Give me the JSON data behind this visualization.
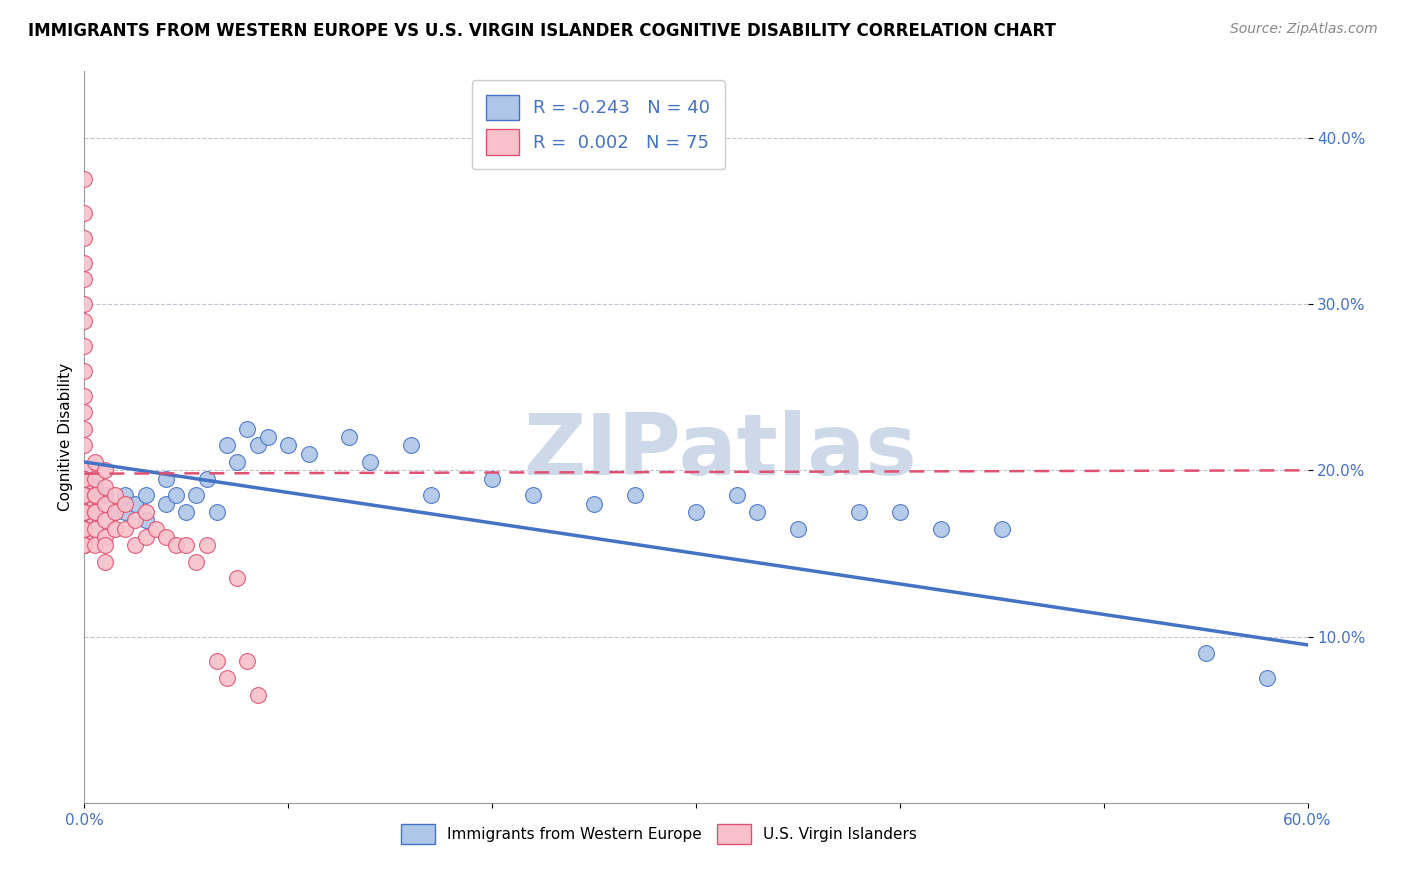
{
  "title": "IMMIGRANTS FROM WESTERN EUROPE VS U.S. VIRGIN ISLANDER COGNITIVE DISABILITY CORRELATION CHART",
  "source": "Source: ZipAtlas.com",
  "ylabel": "Cognitive Disability",
  "xlim": [
    0.0,
    0.6
  ],
  "ylim": [
    0.0,
    0.44
  ],
  "xticks": [
    0.0,
    0.1,
    0.2,
    0.3,
    0.4,
    0.5,
    0.6
  ],
  "xtick_labels": [
    "0.0%",
    "",
    "",
    "",
    "",
    "",
    "60.0%"
  ],
  "yticks": [
    0.1,
    0.2,
    0.3,
    0.4
  ],
  "ytick_labels": [
    "10.0%",
    "20.0%",
    "30.0%",
    "40.0%"
  ],
  "blue_R": -0.243,
  "blue_N": 40,
  "pink_R": 0.002,
  "pink_N": 75,
  "blue_color": "#aec6e8",
  "pink_color": "#f7c0ca",
  "blue_line_color": "#4472c4",
  "pink_line_color": "#e05070",
  "legend_label_blue": "Immigrants from Western Europe",
  "legend_label_pink": "U.S. Virgin Islanders",
  "blue_scatter_x": [
    0.005,
    0.01,
    0.015,
    0.02,
    0.02,
    0.025,
    0.03,
    0.03,
    0.04,
    0.04,
    0.045,
    0.05,
    0.055,
    0.06,
    0.065,
    0.07,
    0.075,
    0.08,
    0.085,
    0.09,
    0.1,
    0.11,
    0.13,
    0.14,
    0.16,
    0.17,
    0.2,
    0.22,
    0.25,
    0.27,
    0.3,
    0.32,
    0.33,
    0.35,
    0.38,
    0.4,
    0.42,
    0.45,
    0.55,
    0.58
  ],
  "blue_scatter_y": [
    0.19,
    0.185,
    0.175,
    0.175,
    0.185,
    0.18,
    0.185,
    0.17,
    0.18,
    0.195,
    0.185,
    0.175,
    0.185,
    0.195,
    0.175,
    0.215,
    0.205,
    0.225,
    0.215,
    0.22,
    0.215,
    0.21,
    0.22,
    0.205,
    0.215,
    0.185,
    0.195,
    0.185,
    0.18,
    0.185,
    0.175,
    0.185,
    0.175,
    0.165,
    0.175,
    0.175,
    0.165,
    0.165,
    0.09,
    0.075
  ],
  "pink_scatter_x": [
    0.0,
    0.0,
    0.0,
    0.0,
    0.0,
    0.0,
    0.0,
    0.0,
    0.0,
    0.0,
    0.0,
    0.0,
    0.0,
    0.0,
    0.0,
    0.0,
    0.0,
    0.0,
    0.0,
    0.0,
    0.0,
    0.0,
    0.0,
    0.0,
    0.0,
    0.0,
    0.0,
    0.0,
    0.0,
    0.0,
    0.0,
    0.0,
    0.0,
    0.0,
    0.0,
    0.0,
    0.0,
    0.0,
    0.0,
    0.0,
    0.005,
    0.005,
    0.005,
    0.005,
    0.005,
    0.005,
    0.005,
    0.005,
    0.01,
    0.01,
    0.01,
    0.01,
    0.01,
    0.01,
    0.01,
    0.015,
    0.015,
    0.015,
    0.02,
    0.02,
    0.025,
    0.025,
    0.03,
    0.03,
    0.035,
    0.04,
    0.045,
    0.05,
    0.055,
    0.06,
    0.065,
    0.07,
    0.075,
    0.08,
    0.085
  ],
  "pink_scatter_y": [
    0.375,
    0.355,
    0.34,
    0.325,
    0.315,
    0.3,
    0.29,
    0.275,
    0.26,
    0.245,
    0.235,
    0.225,
    0.215,
    0.2,
    0.195,
    0.19,
    0.185,
    0.18,
    0.175,
    0.17,
    0.165,
    0.16,
    0.155,
    0.195,
    0.185,
    0.175,
    0.165,
    0.155,
    0.195,
    0.185,
    0.175,
    0.165,
    0.155,
    0.185,
    0.175,
    0.165,
    0.155,
    0.185,
    0.175,
    0.165,
    0.205,
    0.195,
    0.185,
    0.175,
    0.165,
    0.155,
    0.185,
    0.175,
    0.2,
    0.19,
    0.18,
    0.17,
    0.16,
    0.155,
    0.145,
    0.185,
    0.175,
    0.165,
    0.18,
    0.165,
    0.17,
    0.155,
    0.175,
    0.16,
    0.165,
    0.16,
    0.155,
    0.155,
    0.145,
    0.155,
    0.085,
    0.075,
    0.135,
    0.085,
    0.065
  ],
  "blue_trend_x": [
    0.0,
    0.6
  ],
  "blue_trend_y": [
    0.205,
    0.095
  ],
  "pink_trend_x": [
    0.0,
    0.6
  ],
  "pink_trend_y": [
    0.198,
    0.2
  ],
  "watermark": "ZIPatlas",
  "watermark_color": "#cdd9e8",
  "background_color": "#ffffff",
  "grid_color": "#b0b8c8",
  "axis_label_color": "#4472c4",
  "title_fontsize": 12,
  "tick_fontsize": 11
}
